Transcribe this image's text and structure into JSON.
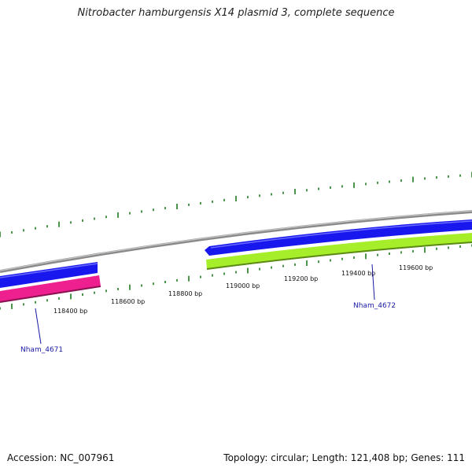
{
  "title": "Nitrobacter hamburgensis X14 plasmid 3, complete sequence",
  "footer": {
    "accession": "Accession: NC_007961",
    "summary": "Topology: circular; Length: 121,408 bp; Genes: 111"
  },
  "colors": {
    "backbone": "#8a8a8a",
    "cds_forward": "#1818ee",
    "cds_reverse_pink": "#ee2090",
    "cds_reverse_green": "#a6ee2a",
    "tick": "#1e7a1e",
    "gene_label": "#1a1aa6",
    "tick_label": "#111111"
  },
  "ruler": {
    "labels": [
      "118400 bp",
      "118600 bp",
      "118800 bp",
      "119000 bp",
      "119200 bp",
      "119400 bp",
      "119600 bp"
    ]
  },
  "genes": [
    {
      "name": "Nham_4671"
    },
    {
      "name": "Nham_4672"
    }
  ]
}
